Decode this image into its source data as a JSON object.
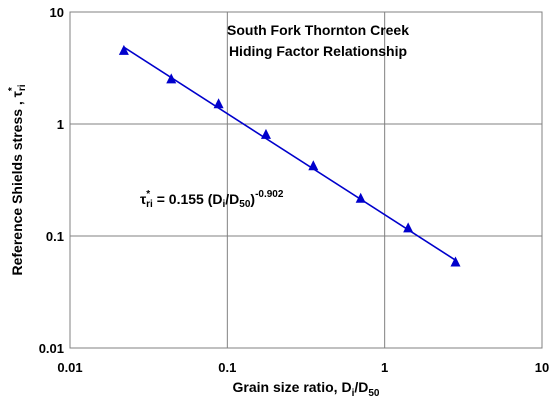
{
  "chart_data": {
    "type": "scatter",
    "title": [
      "South Fork Thornton Creek",
      "Hiding Factor Relationship"
    ],
    "xlabel": {
      "main": "Grain size ratio, D",
      "sub1": "i",
      "mid": "/D",
      "sub2": "50"
    },
    "ylabel": {
      "main": "Reference Shields stress , τ",
      "sup": "*",
      "sub": "ri"
    },
    "x_scale": "log",
    "y_scale": "log",
    "xlim": [
      0.01,
      10
    ],
    "ylim": [
      0.01,
      10
    ],
    "x_ticks": [
      "0.01",
      "0.1",
      "1",
      "10"
    ],
    "y_ticks": [
      "0.01",
      "0.1",
      "1",
      "10"
    ],
    "grid": true,
    "marker": "triangle",
    "color": "#0000cc",
    "series": [
      {
        "x": [
          0.022,
          0.044,
          0.088,
          0.176,
          0.352,
          0.704,
          1.41,
          2.82
        ],
        "y": [
          4.5,
          2.5,
          1.5,
          0.8,
          0.42,
          0.215,
          0.117,
          0.058
        ]
      }
    ],
    "fit": {
      "equation": {
        "lhs": "τ",
        "lhs_sup": "*",
        "lhs_sub": "ri",
        "eq": " = 0.155 (D",
        "d_sub": "i",
        "mid": "/D",
        "d50_sub": "50",
        "close": ")",
        "exp": "-0.902"
      },
      "coefficient": 0.155,
      "exponent": -0.902,
      "x_range": [
        0.022,
        2.82
      ]
    }
  }
}
